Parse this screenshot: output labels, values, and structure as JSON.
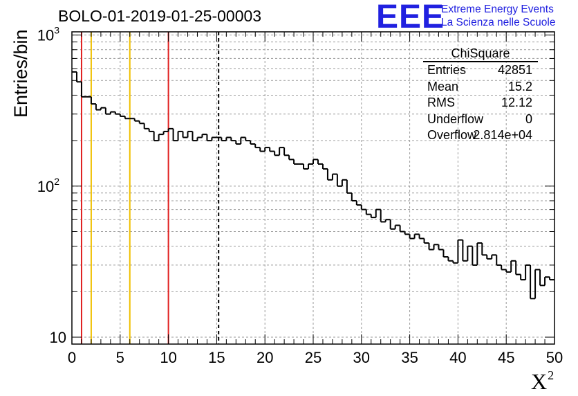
{
  "chart_data": {
    "type": "histogram",
    "title": "BOLO-01-2019-01-25-00003",
    "xlabel": "X",
    "xlabel_sup": "2",
    "ylabel": "Entries/bin",
    "xlim": [
      0,
      50
    ],
    "ylim": [
      9,
      1050
    ],
    "yscale": "log",
    "grid": true,
    "x_ticks": [
      0,
      5,
      10,
      15,
      20,
      25,
      30,
      35,
      40,
      45,
      50
    ],
    "y_ticks": [
      {
        "value": 1000,
        "label": "10",
        "sup": "3"
      },
      {
        "value": 100,
        "label": "10",
        "sup": "2"
      },
      {
        "value": 10,
        "label": "10",
        "sup": ""
      }
    ],
    "bin_width": 0.5,
    "values": [
      570,
      490,
      390,
      390,
      350,
      320,
      330,
      300,
      310,
      300,
      290,
      280,
      280,
      270,
      260,
      240,
      230,
      200,
      220,
      230,
      240,
      200,
      230,
      210,
      230,
      200,
      210,
      220,
      200,
      210,
      210,
      200,
      210,
      200,
      190,
      210,
      200,
      190,
      180,
      170,
      180,
      170,
      160,
      180,
      160,
      150,
      140,
      140,
      130,
      140,
      150,
      140,
      130,
      110,
      120,
      100,
      110,
      90,
      80,
      75,
      70,
      65,
      62,
      70,
      58,
      60,
      52,
      55,
      50,
      48,
      45,
      48,
      45,
      42,
      38,
      41,
      38,
      34,
      32,
      31,
      44,
      32,
      40,
      30,
      42,
      35,
      33,
      35,
      30,
      28,
      27,
      32,
      26,
      24,
      30,
      18,
      28,
      22,
      25,
      24
    ],
    "vlines": [
      {
        "x": 1,
        "color": "#e02020",
        "style": "solid"
      },
      {
        "x": 2,
        "color": "#f0c000",
        "style": "solid"
      },
      {
        "x": 6,
        "color": "#f0c000",
        "style": "solid"
      },
      {
        "x": 10,
        "color": "#e02020",
        "style": "solid"
      },
      {
        "x": 15.2,
        "color": "#000000",
        "style": "dashed"
      }
    ],
    "stats": {
      "title": "ChiSquare",
      "entries": [
        {
          "k": "Entries",
          "v": "42851"
        },
        {
          "k": "Mean",
          "v": "15.2"
        },
        {
          "k": "RMS",
          "v": "12.12"
        },
        {
          "k": "Underflow",
          "v": "0"
        },
        {
          "k": "Overflow",
          "v": "2.814e+04"
        }
      ]
    }
  },
  "logo": {
    "mark": "EEE",
    "line1": "Extreme Energy Events",
    "line2": "La Scienza nelle Scuole",
    "color": "#2020e0"
  }
}
